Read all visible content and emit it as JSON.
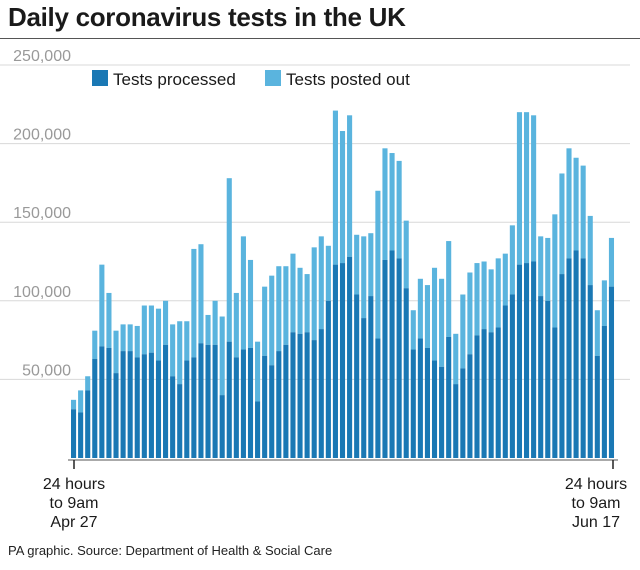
{
  "title": "Daily coronavirus tests in the UK",
  "source": "PA graphic. Source: Department of Health & Social Care",
  "chart_data": {
    "type": "bar",
    "stacked": true,
    "grid": true,
    "legend_position": "top-left",
    "ylim": [
      0,
      250000
    ],
    "yticks": [
      50000,
      100000,
      150000,
      200000,
      250000
    ],
    "ytick_labels": [
      "50,000",
      "100,000",
      "150,000",
      "200,000",
      "250,000"
    ],
    "x_start_label": [
      "24 hours",
      "to 9am",
      "Apr 27"
    ],
    "x_end_label": [
      "24 hours",
      "to 9am",
      "Jun 17"
    ],
    "colors": {
      "processed": "#1a78b4",
      "posted": "#5ab4de",
      "grid": "#d8d8d8",
      "axis": "#555555"
    },
    "series": [
      {
        "name": "Tests processed",
        "values": [
          31000,
          29000,
          43000,
          63000,
          71000,
          70000,
          54000,
          68000,
          68000,
          64000,
          66000,
          67000,
          62000,
          72000,
          52000,
          47000,
          62000,
          64000,
          73000,
          72000,
          72000,
          40000,
          74000,
          64000,
          69000,
          70000,
          36000,
          65000,
          59000,
          68000,
          72000,
          80000,
          79000,
          80000,
          75000,
          82000,
          100000,
          123000,
          124000,
          128000,
          104000,
          89000,
          103000,
          76000,
          126000,
          132000,
          127000,
          108000,
          69000,
          76000,
          70000,
          62000,
          58000,
          77000,
          47000,
          57000,
          66000,
          78000,
          82000,
          80000,
          83000,
          97000,
          104000,
          123000,
          124000,
          125000,
          103000,
          100000,
          83000,
          117000,
          127000,
          132000,
          127000,
          110000,
          65000,
          84000,
          109000
        ]
      },
      {
        "name": "Tests posted out",
        "values": [
          6000,
          14000,
          9000,
          18000,
          52000,
          35000,
          27000,
          17000,
          17000,
          20000,
          31000,
          30000,
          33000,
          28000,
          33000,
          40000,
          25000,
          69000,
          63000,
          19000,
          28000,
          50000,
          104000,
          41000,
          72000,
          56000,
          38000,
          44000,
          57000,
          54000,
          50000,
          50000,
          42000,
          37000,
          59000,
          59000,
          35000,
          98000,
          84000,
          90000,
          38000,
          52000,
          40000,
          94000,
          71000,
          62000,
          62000,
          43000,
          25000,
          38000,
          40000,
          59000,
          56000,
          61000,
          32000,
          47000,
          52000,
          46000,
          43000,
          40000,
          44000,
          33000,
          44000,
          97000,
          96000,
          93000,
          38000,
          40000,
          72000,
          64000,
          70000,
          59000,
          59000,
          44000,
          29000,
          29000,
          31000
        ]
      }
    ]
  }
}
